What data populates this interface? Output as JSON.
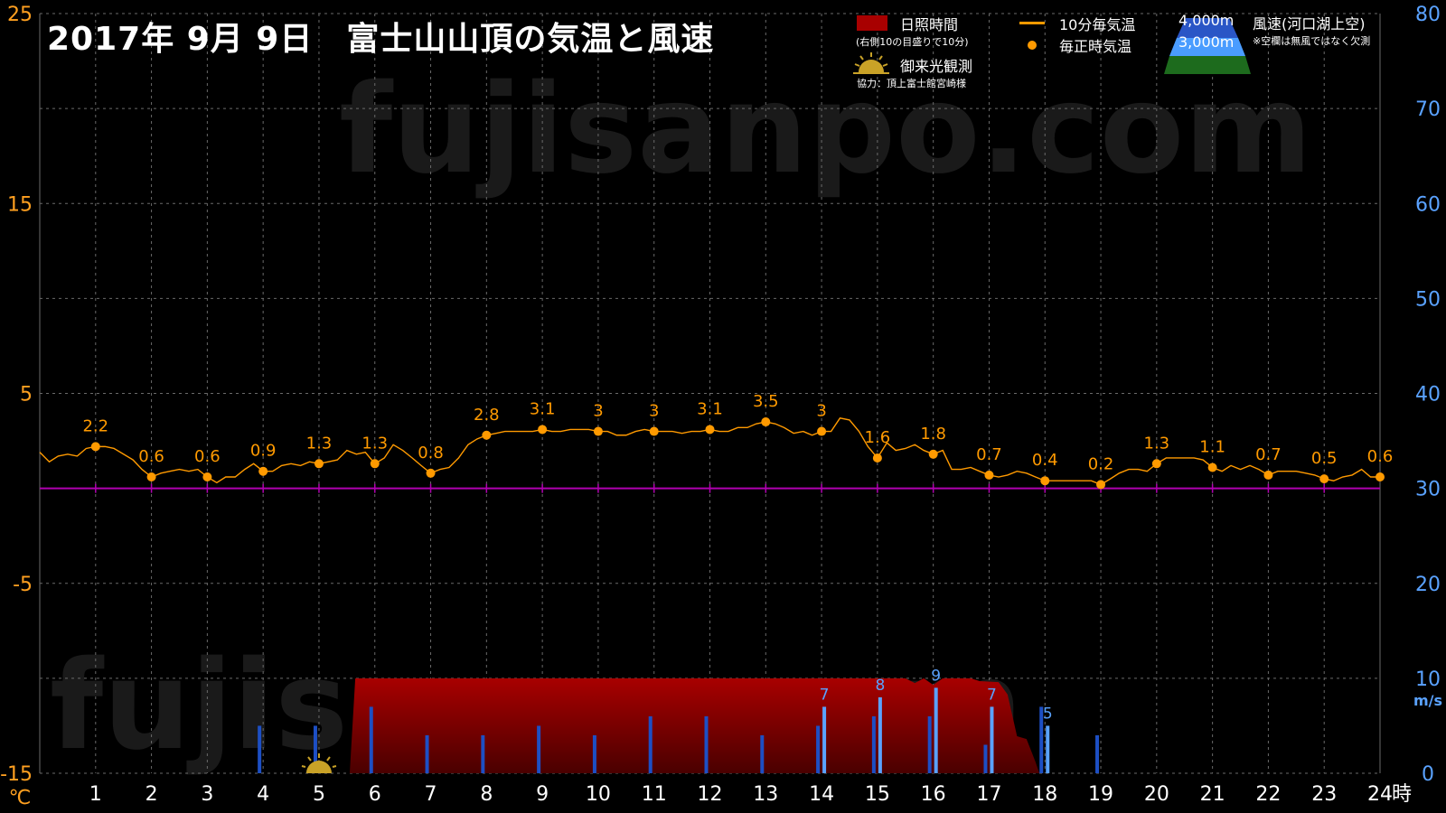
{
  "title": "2017年  9月  9日　富士山山頂の気温と風速",
  "watermark": "fujisanpo.com",
  "legend": {
    "sunshine": "日照時間",
    "sunshine_note": "(右側10の目盛りで10分)",
    "goraiko": "御来光観測",
    "cooperation": "協力：頂上富士館宮崎様",
    "temp_10min": "10分毎気温",
    "temp_hourly": "毎正時気温",
    "alt_4000": "4,000m",
    "alt_3000": "3,000m",
    "wind": "風速(河口湖上空)",
    "wind_note": "※空欄は無風ではなく欠測"
  },
  "colors": {
    "temp": "#ff9a00",
    "sunshine": "#a80000",
    "wind_4000": "#1d4fc4",
    "wind_3000": "#5aa2ff",
    "zero_line": "#b000b0",
    "left_axis": "#ffa020",
    "right_axis": "#5aa2ff"
  },
  "chart_data": {
    "type": "line",
    "x_axis": {
      "ticks": [
        "1",
        "2",
        "3",
        "4",
        "5",
        "6",
        "7",
        "8",
        "9",
        "10",
        "11",
        "12",
        "13",
        "14",
        "15",
        "16",
        "17",
        "18",
        "19",
        "20",
        "21",
        "22",
        "23",
        "24"
      ],
      "unit": "時",
      "range": [
        0,
        24
      ]
    },
    "y_left": {
      "ticks": [
        "25",
        "15",
        "5",
        "-5",
        "-15"
      ],
      "range": [
        -15,
        25
      ],
      "unit": "℃"
    },
    "y_right": {
      "ticks": [
        "80",
        "70",
        "60",
        "50",
        "40",
        "30",
        "20",
        "10",
        "0"
      ],
      "range": [
        0,
        80
      ],
      "unit": "m/s"
    },
    "temp_hourly": {
      "hours": [
        1,
        2,
        3,
        4,
        5,
        6,
        7,
        8,
        9,
        10,
        11,
        12,
        13,
        14,
        15,
        16,
        17,
        18,
        19,
        20,
        21,
        22,
        23,
        24
      ],
      "values": [
        2.2,
        0.6,
        0.6,
        0.9,
        1.3,
        1.3,
        0.8,
        2.8,
        3.1,
        3,
        3,
        3.1,
        3.5,
        3,
        1.6,
        1.8,
        0.7,
        0.4,
        0.2,
        1.3,
        1.1,
        0.7,
        0.5,
        0.6
      ],
      "labels": [
        "2.2",
        "0.6",
        "0.6",
        "0.9",
        "1.3",
        "1.3",
        "0.8",
        "2.8",
        "3.1",
        "3",
        "3",
        "3.1",
        "3.5",
        "3",
        "1.6",
        "1.8",
        "0.7",
        "0.4",
        "0.2",
        "1.3",
        "1.1",
        "0.7",
        "0.5",
        "0.6"
      ]
    },
    "temp_10min": [
      [
        0,
        1.9
      ],
      [
        0.17,
        1.4
      ],
      [
        0.33,
        1.7
      ],
      [
        0.5,
        1.8
      ],
      [
        0.67,
        1.7
      ],
      [
        0.83,
        2.1
      ],
      [
        1,
        2.2
      ],
      [
        1.17,
        2.2
      ],
      [
        1.33,
        2.1
      ],
      [
        1.5,
        1.8
      ],
      [
        1.67,
        1.5
      ],
      [
        1.83,
        1.0
      ],
      [
        2,
        0.6
      ],
      [
        2.17,
        0.8
      ],
      [
        2.33,
        0.9
      ],
      [
        2.5,
        1.0
      ],
      [
        2.67,
        0.9
      ],
      [
        2.83,
        1.0
      ],
      [
        3,
        0.6
      ],
      [
        3.17,
        0.3
      ],
      [
        3.33,
        0.6
      ],
      [
        3.5,
        0.6
      ],
      [
        3.67,
        1.0
      ],
      [
        3.83,
        1.3
      ],
      [
        4,
        0.9
      ],
      [
        4.17,
        0.9
      ],
      [
        4.33,
        1.2
      ],
      [
        4.5,
        1.3
      ],
      [
        4.67,
        1.2
      ],
      [
        4.83,
        1.4
      ],
      [
        5,
        1.3
      ],
      [
        5.17,
        1.4
      ],
      [
        5.33,
        1.5
      ],
      [
        5.5,
        2.0
      ],
      [
        5.67,
        1.8
      ],
      [
        5.83,
        1.9
      ],
      [
        6,
        1.3
      ],
      [
        6.17,
        1.6
      ],
      [
        6.33,
        2.3
      ],
      [
        6.5,
        2.0
      ],
      [
        6.67,
        1.6
      ],
      [
        6.83,
        1.2
      ],
      [
        7,
        0.8
      ],
      [
        7.17,
        1.0
      ],
      [
        7.33,
        1.1
      ],
      [
        7.5,
        1.6
      ],
      [
        7.67,
        2.3
      ],
      [
        7.83,
        2.6
      ],
      [
        8,
        2.8
      ],
      [
        8.17,
        2.9
      ],
      [
        8.33,
        3.0
      ],
      [
        8.5,
        3.0
      ],
      [
        8.67,
        3.0
      ],
      [
        8.83,
        3.0
      ],
      [
        9,
        3.1
      ],
      [
        9.17,
        3.0
      ],
      [
        9.33,
        3.0
      ],
      [
        9.5,
        3.1
      ],
      [
        9.67,
        3.1
      ],
      [
        9.83,
        3.1
      ],
      [
        10,
        3.0
      ],
      [
        10.17,
        3.0
      ],
      [
        10.33,
        2.8
      ],
      [
        10.5,
        2.8
      ],
      [
        10.67,
        3.0
      ],
      [
        10.83,
        3.1
      ],
      [
        11,
        3.0
      ],
      [
        11.17,
        3.0
      ],
      [
        11.33,
        3.0
      ],
      [
        11.5,
        2.9
      ],
      [
        11.67,
        3.0
      ],
      [
        11.83,
        3.0
      ],
      [
        12,
        3.1
      ],
      [
        12.17,
        3.0
      ],
      [
        12.33,
        3.0
      ],
      [
        12.5,
        3.2
      ],
      [
        12.67,
        3.2
      ],
      [
        12.83,
        3.4
      ],
      [
        13,
        3.5
      ],
      [
        13.17,
        3.4
      ],
      [
        13.33,
        3.2
      ],
      [
        13.5,
        2.9
      ],
      [
        13.67,
        3.0
      ],
      [
        13.83,
        2.8
      ],
      [
        14,
        3.0
      ],
      [
        14.17,
        3.0
      ],
      [
        14.33,
        3.7
      ],
      [
        14.5,
        3.6
      ],
      [
        14.67,
        3.0
      ],
      [
        14.83,
        2.2
      ],
      [
        15,
        1.6
      ],
      [
        15.17,
        2.4
      ],
      [
        15.33,
        2.0
      ],
      [
        15.5,
        2.1
      ],
      [
        15.67,
        2.3
      ],
      [
        15.83,
        2.0
      ],
      [
        16,
        1.8
      ],
      [
        16.17,
        2.0
      ],
      [
        16.33,
        1.0
      ],
      [
        16.5,
        1.0
      ],
      [
        16.67,
        1.1
      ],
      [
        16.83,
        0.9
      ],
      [
        17,
        0.7
      ],
      [
        17.17,
        0.6
      ],
      [
        17.33,
        0.7
      ],
      [
        17.5,
        0.9
      ],
      [
        17.67,
        0.8
      ],
      [
        17.83,
        0.6
      ],
      [
        18,
        0.4
      ],
      [
        18.17,
        0.4
      ],
      [
        18.33,
        0.4
      ],
      [
        18.5,
        0.4
      ],
      [
        18.67,
        0.4
      ],
      [
        18.83,
        0.4
      ],
      [
        19,
        0.2
      ],
      [
        19.17,
        0.5
      ],
      [
        19.33,
        0.8
      ],
      [
        19.5,
        1.0
      ],
      [
        19.67,
        1.0
      ],
      [
        19.83,
        0.9
      ],
      [
        20,
        1.3
      ],
      [
        20.17,
        1.6
      ],
      [
        20.33,
        1.6
      ],
      [
        20.5,
        1.6
      ],
      [
        20.67,
        1.6
      ],
      [
        20.83,
        1.5
      ],
      [
        21,
        1.1
      ],
      [
        21.17,
        0.9
      ],
      [
        21.33,
        1.2
      ],
      [
        21.5,
        1.0
      ],
      [
        21.67,
        1.2
      ],
      [
        21.83,
        1.0
      ],
      [
        22,
        0.7
      ],
      [
        22.17,
        0.9
      ],
      [
        22.33,
        0.9
      ],
      [
        22.5,
        0.9
      ],
      [
        22.67,
        0.8
      ],
      [
        22.83,
        0.7
      ],
      [
        23,
        0.5
      ],
      [
        23.17,
        0.4
      ],
      [
        23.33,
        0.6
      ],
      [
        23.5,
        0.7
      ],
      [
        23.67,
        1.0
      ],
      [
        23.83,
        0.6
      ],
      [
        24,
        0.6
      ]
    ],
    "sunshine_minutes": [
      [
        5.3,
        0
      ],
      [
        5.55,
        0
      ],
      [
        5.65,
        10
      ],
      [
        15.5,
        10
      ],
      [
        15.67,
        9.5
      ],
      [
        15.83,
        10
      ],
      [
        16,
        9.3
      ],
      [
        16.17,
        10
      ],
      [
        16.67,
        10
      ],
      [
        16.83,
        9.7
      ],
      [
        17.17,
        9.6
      ],
      [
        17.33,
        8.3
      ],
      [
        17.5,
        3.9
      ],
      [
        17.67,
        3.6
      ],
      [
        17.83,
        1.2
      ],
      [
        17.9,
        0
      ]
    ],
    "goraiko_hour": 5.0,
    "wind_4000": [
      [
        4,
        5
      ],
      [
        5,
        5
      ],
      [
        6,
        7
      ],
      [
        7,
        4
      ],
      [
        8,
        4
      ],
      [
        9,
        5
      ],
      [
        10,
        4
      ],
      [
        11,
        6
      ],
      [
        12,
        6
      ],
      [
        13,
        4
      ],
      [
        14,
        5
      ],
      [
        15,
        6
      ],
      [
        16,
        6
      ],
      [
        17,
        3
      ],
      [
        18,
        7
      ],
      [
        19,
        4
      ]
    ],
    "wind_3000": [
      [
        14,
        7
      ],
      [
        15,
        8
      ],
      [
        16,
        9
      ],
      [
        17,
        7
      ],
      [
        18,
        5
      ]
    ],
    "wind_labels": [
      {
        "hour": 14,
        "text": "7"
      },
      {
        "hour": 15,
        "text": "8"
      },
      {
        "hour": 16,
        "text": "9"
      },
      {
        "hour": 17,
        "text": "7"
      },
      {
        "hour": 18,
        "text": "5"
      }
    ]
  }
}
